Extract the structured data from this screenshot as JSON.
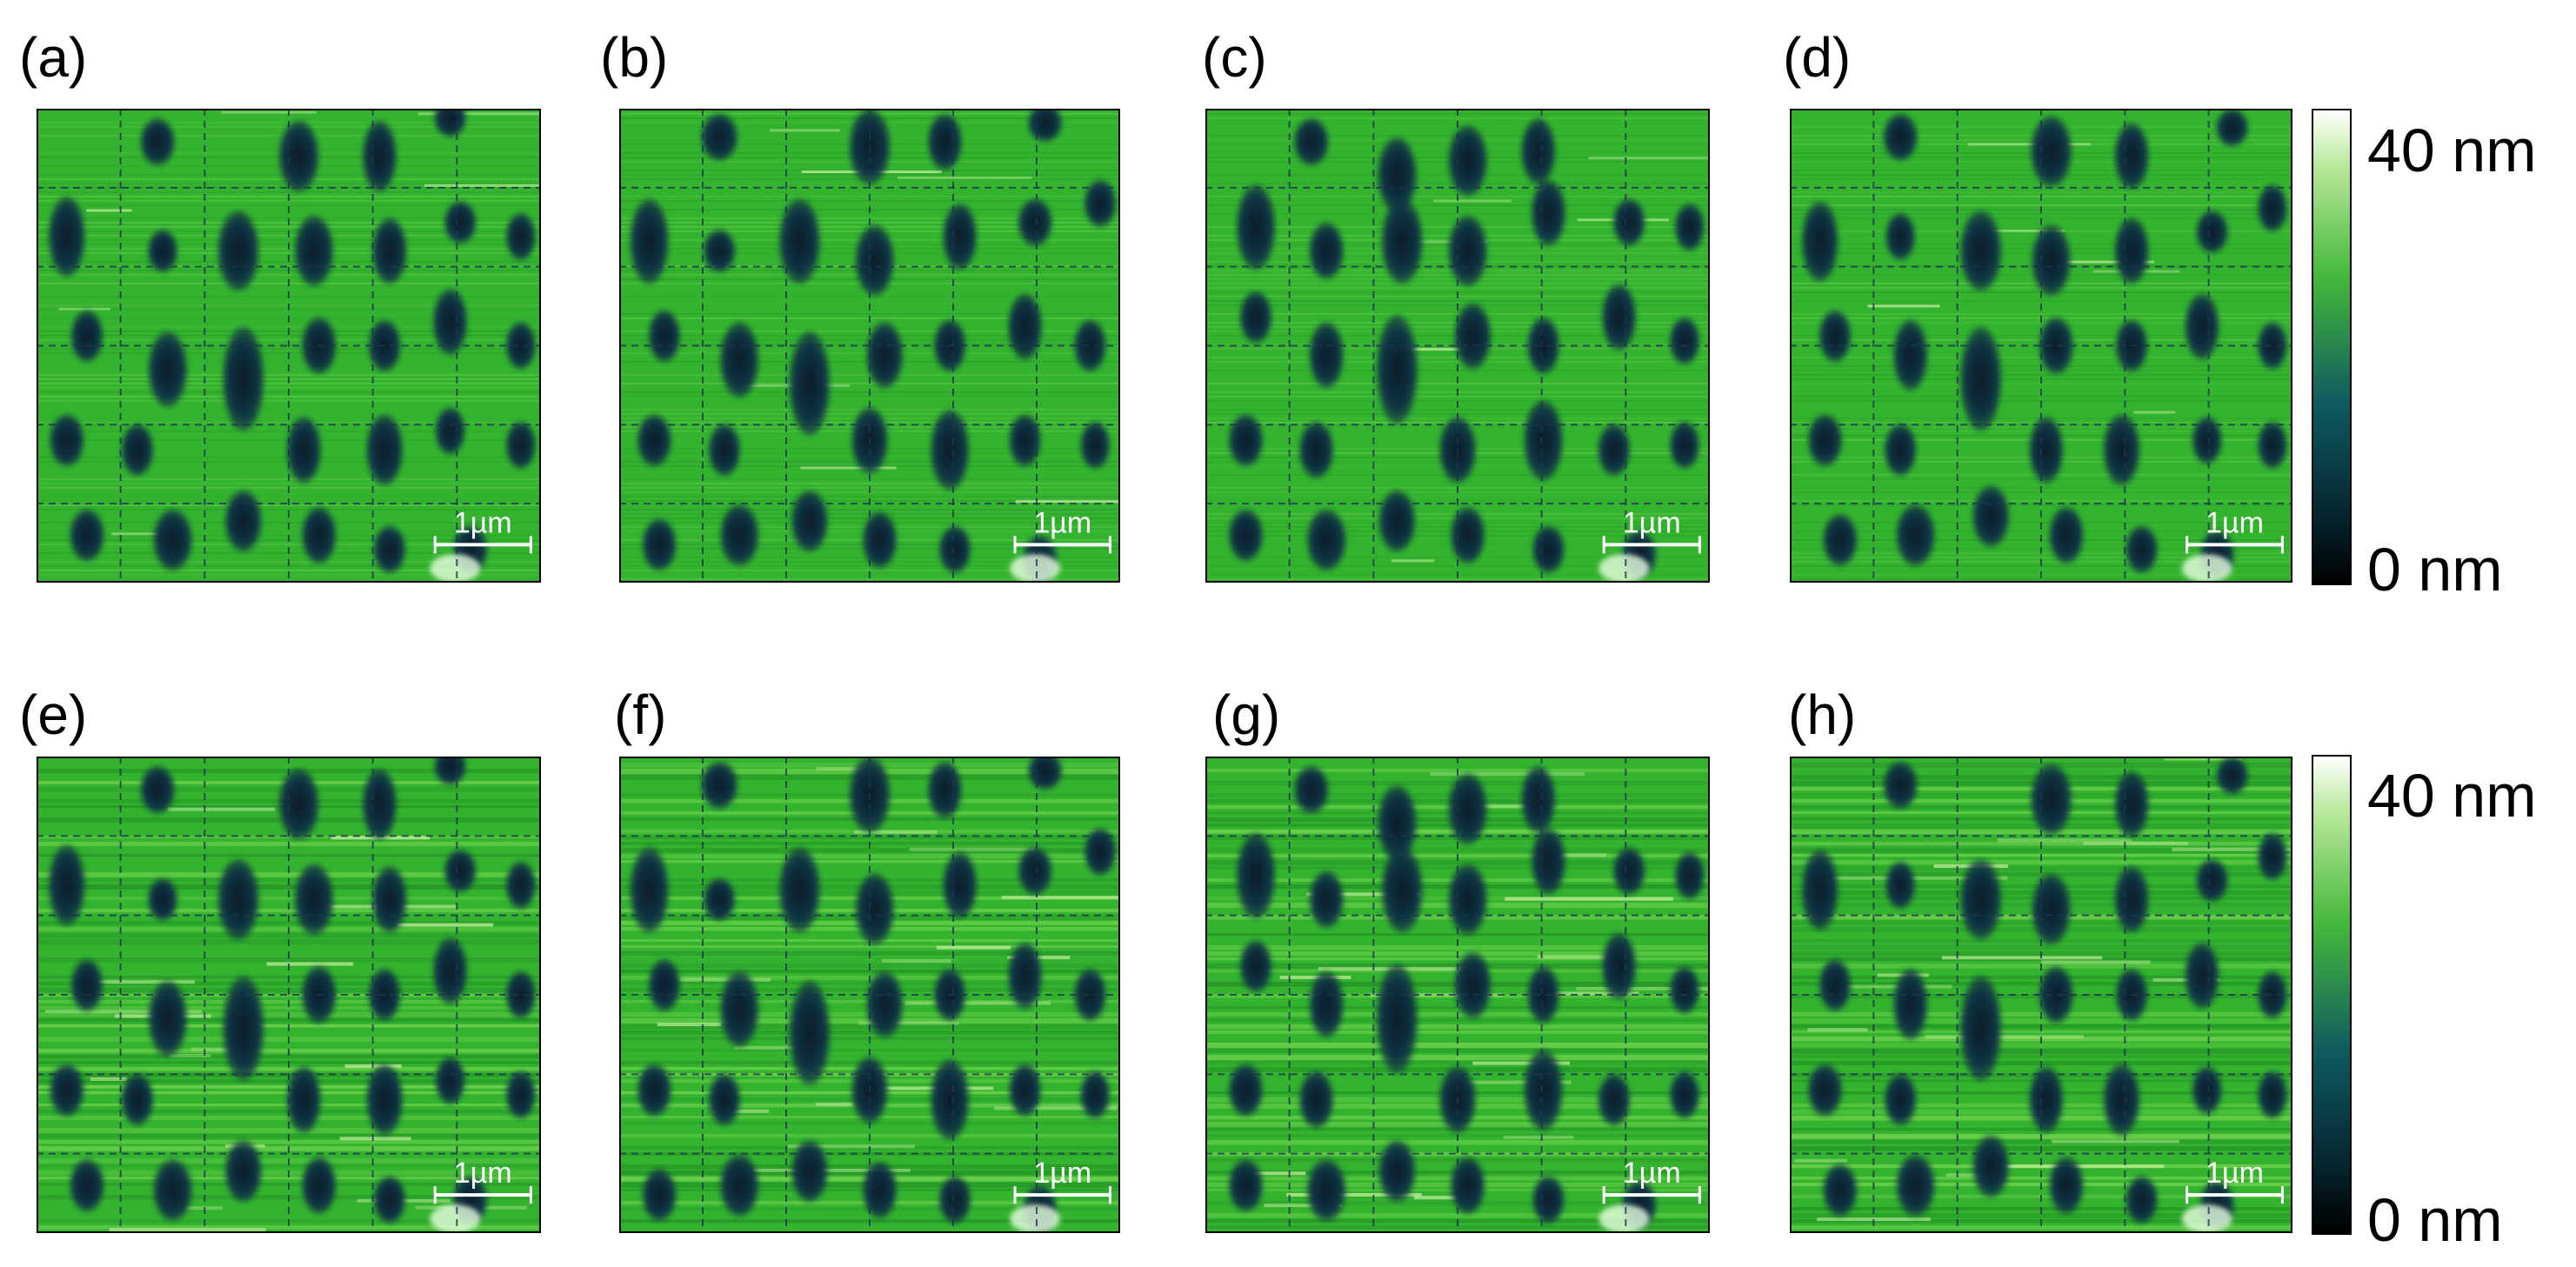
{
  "figure": {
    "panels": [
      {
        "label": "(a)",
        "scale_label": "1µm"
      },
      {
        "label": "(b)",
        "scale_label": "1µm"
      },
      {
        "label": "(c)",
        "scale_label": "1µm"
      },
      {
        "label": "(d)",
        "scale_label": "1µm"
      },
      {
        "label": "(e)",
        "scale_label": "1µm"
      },
      {
        "label": "(f)",
        "scale_label": "1µm"
      },
      {
        "label": "(g)",
        "scale_label": "1µm"
      },
      {
        "label": "(h)",
        "scale_label": "1µm"
      }
    ],
    "colorbars": [
      {
        "max_label": "40 nm",
        "min_label": "0 nm"
      },
      {
        "max_label": "40 nm",
        "min_label": "0 nm"
      }
    ],
    "colors": {
      "surface": "#34b32f",
      "surface_light": "#7fd955",
      "surface_dark": "#239024",
      "hole": "#0d3344",
      "hole_core": "#081c26",
      "grid": "#1e3550",
      "colorbar_top": "#ffffff",
      "colorbar_mid_high": "#45b93a",
      "colorbar_mid_low": "#0e5a60",
      "colorbar_bottom": "#000000"
    }
  }
}
